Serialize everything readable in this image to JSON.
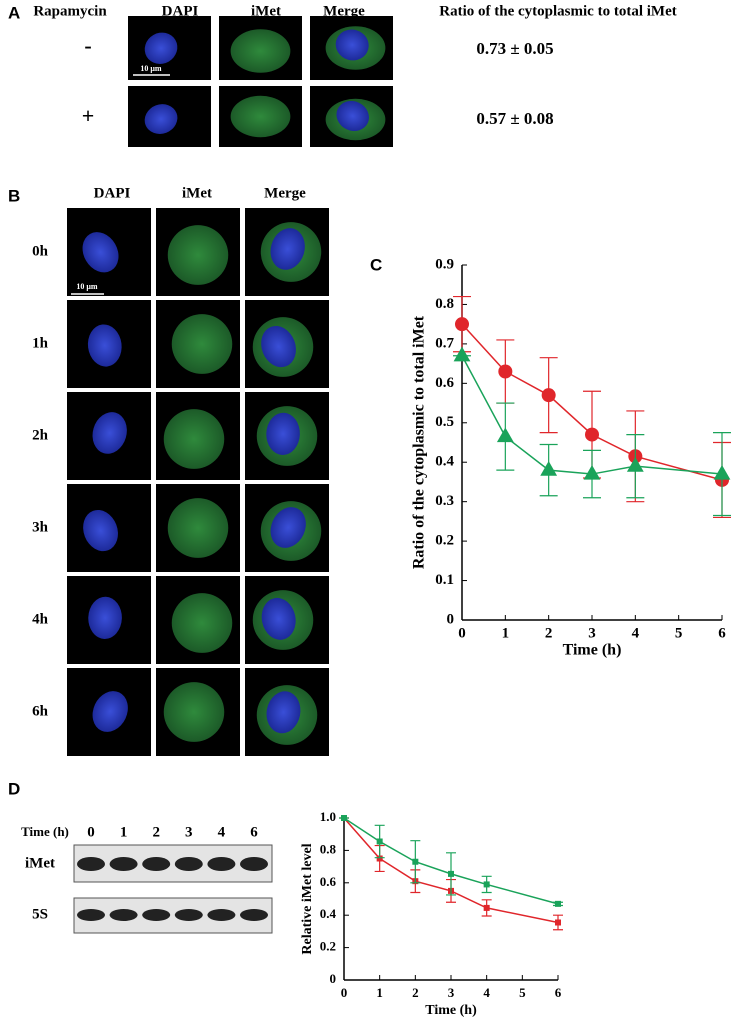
{
  "panel_a": {
    "label": "A",
    "headers": [
      "Rapamycin",
      "DAPI",
      "iMet",
      "Merge",
      "Ratio of the cytoplasmic to total iMet"
    ],
    "scale_bar": "10 μm",
    "rows": [
      {
        "condition": "-",
        "ratio": "0.73 ± 0.05"
      },
      {
        "condition": "+",
        "ratio": "0.57 ± 0.08"
      }
    ]
  },
  "panel_b": {
    "label": "B",
    "headers": [
      "DAPI",
      "iMet",
      "Merge"
    ],
    "scale_bar": "10 μm",
    "rows": [
      "0h",
      "1h",
      "2h",
      "3h",
      "4h",
      "6h"
    ]
  },
  "panel_d": {
    "label": "D",
    "time_label": "Time (h)",
    "lanes": [
      "0",
      "1",
      "2",
      "3",
      "4",
      "6"
    ],
    "bands": [
      "iMet",
      "5S"
    ]
  },
  "chart_data": [
    {
      "type": "line",
      "panel": "C",
      "x_label": "Time (h)",
      "y_label": "Ratio of the cytoplasmic to total iMet",
      "x": [
        0,
        1,
        2,
        3,
        4,
        6
      ],
      "xlim": [
        0,
        6
      ],
      "xticks": [
        0,
        1,
        2,
        3,
        4,
        5,
        6
      ],
      "ylim": [
        0,
        0.9
      ],
      "yticks": [
        0,
        0.1,
        0.2,
        0.3,
        0.4,
        0.5,
        0.6,
        0.7,
        0.8,
        0.9
      ],
      "series": [
        {
          "color": "#e0262b",
          "marker": "circle",
          "values": [
            0.75,
            0.63,
            0.57,
            0.47,
            0.415,
            0.355
          ],
          "errors": [
            0.07,
            0.08,
            0.095,
            0.11,
            0.115,
            0.095
          ]
        },
        {
          "color": "#1aa35a",
          "marker": "triangle",
          "values": [
            0.67,
            0.465,
            0.38,
            0.37,
            0.39,
            0.37
          ],
          "errors": [
            0,
            0.085,
            0.065,
            0.06,
            0.08,
            0.105
          ]
        }
      ]
    },
    {
      "type": "line",
      "x_label": "Time (h)",
      "y_label": "Relative iMet level",
      "x": [
        0,
        1,
        2,
        3,
        4,
        6
      ],
      "xlim": [
        0,
        6
      ],
      "xticks": [
        0,
        1,
        2,
        3,
        4,
        5,
        6
      ],
      "ylim": [
        0,
        1
      ],
      "yticks": [
        0,
        0.2,
        0.4,
        0.6,
        0.8,
        {
          "value": 1,
          "label": "1.0"
        }
      ],
      "series": [
        {
          "color": "#e0262b",
          "marker": "square",
          "values": [
            1,
            0.75,
            0.61,
            0.55,
            0.445,
            0.355
          ],
          "errors": [
            0,
            0.08,
            0.07,
            0.07,
            0.05,
            0.045
          ]
        },
        {
          "color": "#1aa35a",
          "marker": "square",
          "values": [
            1,
            0.855,
            0.73,
            0.655,
            0.59,
            0.47
          ],
          "errors": [
            0,
            0.1,
            0.13,
            0.13,
            0.05,
            0.01
          ]
        }
      ]
    }
  ]
}
